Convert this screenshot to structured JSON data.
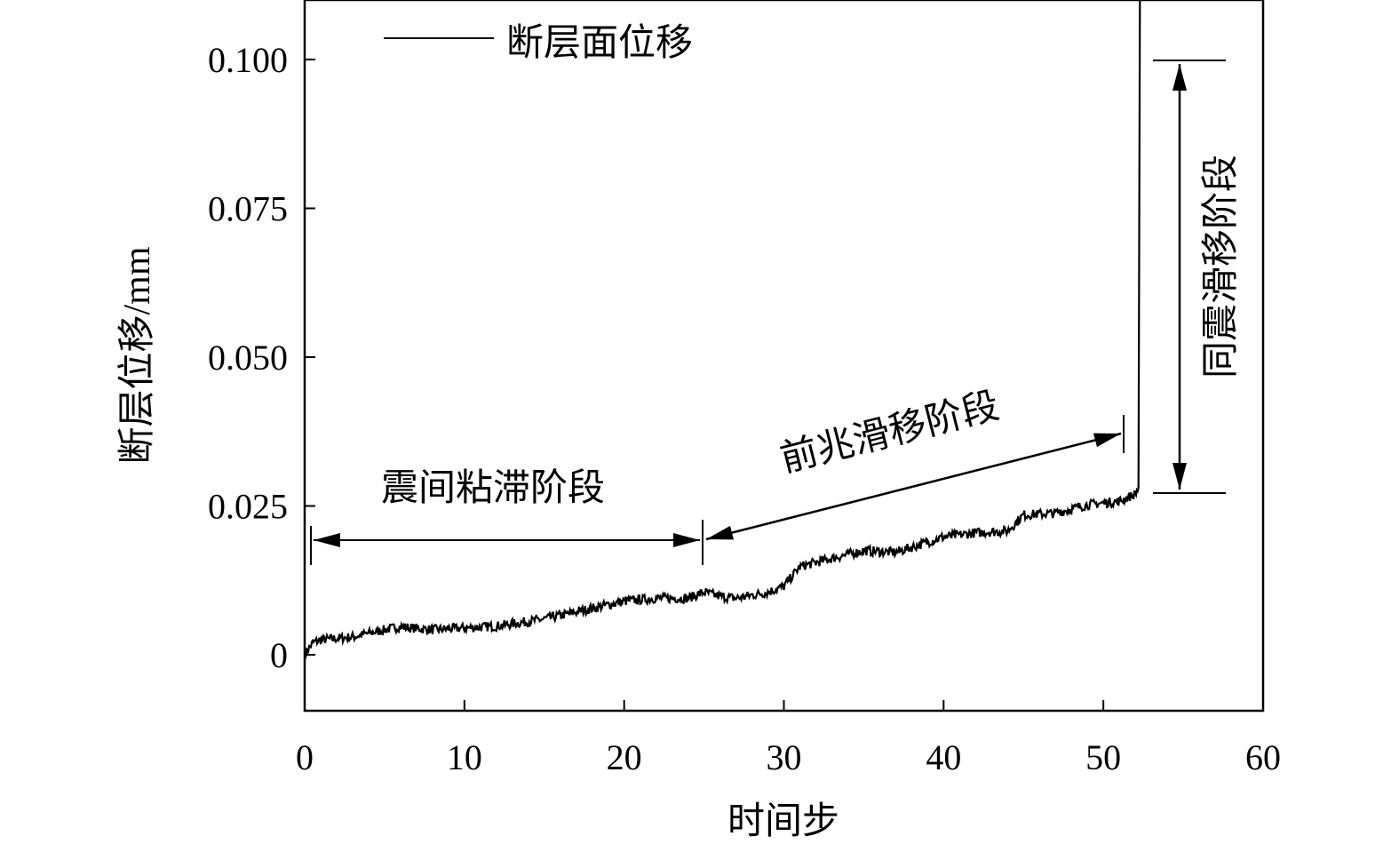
{
  "chart_data": {
    "type": "line",
    "title": "",
    "xlabel": "时间步",
    "ylabel": "断层位移/mm",
    "xlim": [
      0,
      60
    ],
    "ylim": [
      -0.0094,
      0.11
    ],
    "xticks": [
      0,
      10,
      20,
      30,
      40,
      50,
      60
    ],
    "xtick_labels": [
      "0",
      "10",
      "20",
      "30",
      "40",
      "50",
      "60"
    ],
    "yticks": [
      0,
      0.025,
      0.05,
      0.075,
      0.1
    ],
    "ytick_labels": [
      "0",
      "0.025",
      "0.050",
      "0.075",
      "0.100"
    ],
    "grid": false,
    "legend": {
      "position": "top-left",
      "entries": [
        "断层面位移"
      ]
    },
    "series": [
      {
        "name": "断层面位移",
        "color": "#000000",
        "x": [
          0,
          0.5,
          1,
          3,
          5,
          6,
          8,
          10,
          12,
          15,
          18,
          20,
          22,
          24,
          25,
          26,
          27,
          29,
          30,
          31,
          33,
          35,
          37,
          40,
          42,
          44,
          45,
          47,
          49,
          50,
          51,
          52,
          52.2,
          52.3
        ],
        "y": [
          0,
          0.002,
          0.0025,
          0.003,
          0.0042,
          0.0047,
          0.0042,
          0.0045,
          0.0048,
          0.006,
          0.0078,
          0.009,
          0.0095,
          0.0095,
          0.0105,
          0.0098,
          0.0095,
          0.0105,
          0.0115,
          0.0148,
          0.0162,
          0.0175,
          0.0172,
          0.0198,
          0.0205,
          0.0208,
          0.0235,
          0.0238,
          0.0252,
          0.0255,
          0.0258,
          0.027,
          0.028,
          0.12
        ]
      }
    ],
    "annotations": [
      {
        "text": "震间粘滞阶段",
        "x_range": [
          0.4,
          24.8
        ]
      },
      {
        "text": "前兆滑移阶段",
        "x_range": [
          24.8,
          51.3
        ]
      },
      {
        "text": "同震滑移阶段",
        "y_range": [
          0.027,
          0.1
        ]
      }
    ]
  }
}
